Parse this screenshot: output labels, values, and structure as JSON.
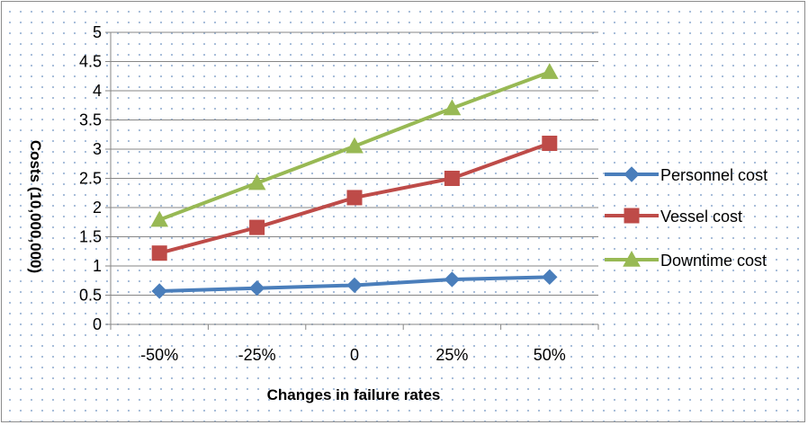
{
  "chart_data": {
    "type": "line",
    "categories": [
      "-50%",
      "-25%",
      "0",
      "25%",
      "50%"
    ],
    "series": [
      {
        "name": "Personnel cost",
        "values": [
          0.57,
          0.62,
          0.67,
          0.77,
          0.81
        ],
        "color": "#4a7ebb",
        "marker": "diamond"
      },
      {
        "name": "Vessel cost",
        "values": [
          1.22,
          1.66,
          2.17,
          2.5,
          3.1
        ],
        "color": "#be4b48",
        "marker": "square"
      },
      {
        "name": "Downtime cost",
        "values": [
          1.79,
          2.42,
          3.05,
          3.7,
          4.32
        ],
        "color": "#98b954",
        "marker": "triangle"
      }
    ],
    "xlabel": "Changes in failure rates",
    "ylabel": "Costs (10,000,000)",
    "ylim": [
      0,
      5
    ],
    "yticks": [
      "0",
      "0.5",
      "1",
      "1.5",
      "2",
      "2.5",
      "3",
      "3.5",
      "4",
      "4.5",
      "5"
    ],
    "grid": true,
    "legend": "right"
  }
}
